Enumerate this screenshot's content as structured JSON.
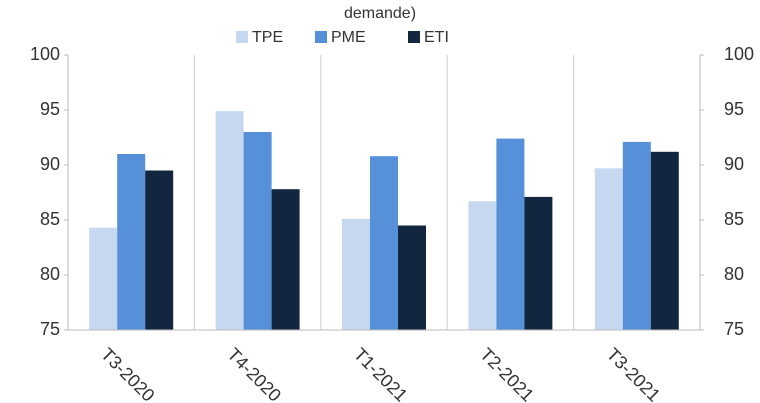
{
  "chart_data": {
    "type": "bar",
    "title": "demande)",
    "categories": [
      "T3-2020",
      "T4-2020",
      "T1-2021",
      "T2-2021",
      "T3-2021"
    ],
    "series": [
      {
        "name": "TPE",
        "color": "#c5d8f0",
        "values": [
          84.3,
          94.9,
          85.1,
          86.7,
          89.7
        ]
      },
      {
        "name": "PME",
        "color": "#5590d8",
        "values": [
          91.0,
          93.0,
          90.8,
          92.4,
          92.1
        ]
      },
      {
        "name": "ETI",
        "color": "#122640",
        "values": [
          89.5,
          87.8,
          84.5,
          87.1,
          91.2
        ]
      }
    ],
    "ylim": [
      75,
      100
    ],
    "yticks": [
      75,
      80,
      85,
      90,
      95,
      100
    ],
    "legend": "top"
  }
}
